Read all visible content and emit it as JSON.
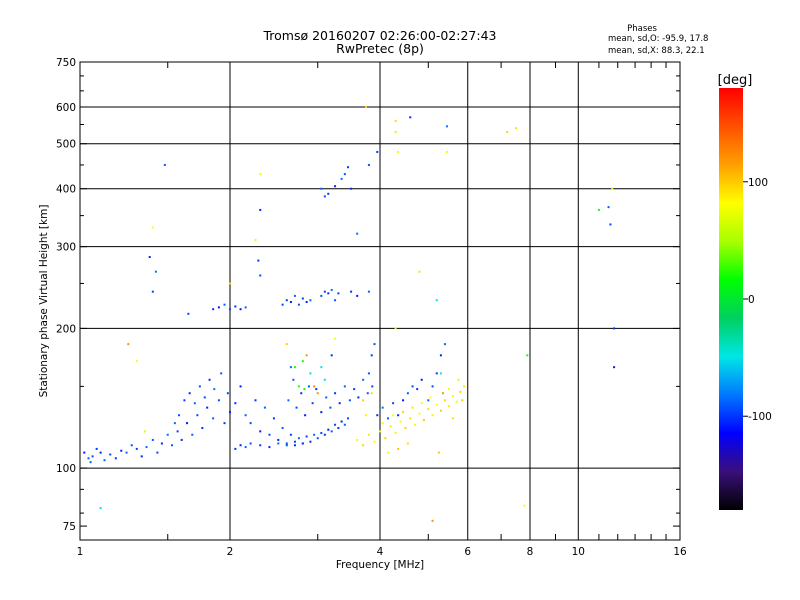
{
  "chart_data": {
    "type": "scatter",
    "title": "Tromsø 20160207 02:26:00-02:27:43",
    "subtitle": "RwPretec (8p)",
    "xlabel": "Frequency [MHz]",
    "ylabel": "Stationary phase Virtual Height [km]",
    "x_scale": "log",
    "y_scale": "log",
    "xlim": [
      1,
      16
    ],
    "ylim": [
      70,
      750
    ],
    "grid": true,
    "x_ticks": [
      1,
      2,
      4,
      6,
      8,
      10,
      16
    ],
    "x_tick_labels": [
      "1",
      "2",
      "4",
      "6",
      "8",
      "10",
      "16"
    ],
    "x_minor_ticks": [
      1.5,
      3,
      5,
      7,
      9,
      11,
      12,
      13,
      14,
      15
    ],
    "y_ticks": [
      75,
      100,
      200,
      300,
      400,
      500,
      600,
      750
    ],
    "y_tick_labels": [
      "75",
      "100",
      "200",
      "300",
      "400",
      "500",
      "600",
      "750"
    ],
    "phase_stats": {
      "heading": "Phases",
      "o_line": "mean, sd,O: -95.9, 17.8",
      "x_line": "mean, sd,X:  88.3, 22.1"
    },
    "colorbar": {
      "label": "[deg]",
      "range": [
        -180,
        180
      ],
      "ticks": [
        100,
        0,
        -100
      ],
      "tick_labels": [
        "100",
        "0",
        "-100"
      ],
      "colors": [
        "#000000",
        "#3a0f7a",
        "#0000ff",
        "#0078ff",
        "#00e6e6",
        "#00d060",
        "#00ff00",
        "#a8ff00",
        "#ffff00",
        "#ffa000",
        "#ff5000",
        "#ff0000"
      ]
    },
    "series": [
      {
        "mode": "O",
        "phase_deg": -95.9,
        "points": [
          [
            1.02,
            108
          ],
          [
            1.04,
            105
          ],
          [
            1.06,
            106
          ],
          [
            1.08,
            110
          ],
          [
            1.1,
            108
          ],
          [
            1.12,
            104
          ],
          [
            1.15,
            107
          ],
          [
            1.18,
            105
          ],
          [
            1.21,
            109
          ],
          [
            1.24,
            108
          ],
          [
            1.27,
            112
          ],
          [
            1.3,
            110
          ],
          [
            1.33,
            106
          ],
          [
            1.36,
            111
          ],
          [
            1.4,
            115
          ],
          [
            1.43,
            108
          ],
          [
            1.46,
            113
          ],
          [
            1.5,
            118
          ],
          [
            1.53,
            112
          ],
          [
            1.57,
            120
          ],
          [
            1.6,
            115
          ],
          [
            1.64,
            125
          ],
          [
            1.68,
            118
          ],
          [
            1.72,
            130
          ],
          [
            1.76,
            122
          ],
          [
            1.8,
            135
          ],
          [
            1.85,
            128
          ],
          [
            1.9,
            140
          ],
          [
            1.95,
            125
          ],
          [
            2.0,
            132
          ],
          [
            1.55,
            125
          ],
          [
            1.58,
            130
          ],
          [
            1.62,
            140
          ],
          [
            1.66,
            145
          ],
          [
            1.7,
            138
          ],
          [
            1.74,
            150
          ],
          [
            1.78,
            142
          ],
          [
            1.82,
            155
          ],
          [
            1.86,
            148
          ],
          [
            1.92,
            160
          ],
          [
            1.98,
            145
          ],
          [
            2.05,
            138
          ],
          [
            2.1,
            150
          ],
          [
            2.15,
            130
          ],
          [
            2.2,
            125
          ],
          [
            2.25,
            140
          ],
          [
            2.3,
            120
          ],
          [
            2.35,
            135
          ],
          [
            2.4,
            118
          ],
          [
            2.45,
            128
          ],
          [
            2.5,
            115
          ],
          [
            2.55,
            122
          ],
          [
            2.6,
            113
          ],
          [
            2.65,
            118
          ],
          [
            2.7,
            112
          ],
          [
            2.75,
            116
          ],
          [
            2.8,
            113
          ],
          [
            2.85,
            117
          ],
          [
            2.9,
            114
          ],
          [
            2.95,
            118
          ],
          [
            3.0,
            116
          ],
          [
            3.05,
            119
          ],
          [
            3.1,
            118
          ],
          [
            3.15,
            121
          ],
          [
            3.2,
            120
          ],
          [
            3.25,
            124
          ],
          [
            3.3,
            122
          ],
          [
            3.35,
            126
          ],
          [
            3.4,
            124
          ],
          [
            3.45,
            128
          ],
          [
            2.05,
            110
          ],
          [
            2.1,
            112
          ],
          [
            2.15,
            111
          ],
          [
            2.2,
            113
          ],
          [
            2.3,
            112
          ],
          [
            2.4,
            111
          ],
          [
            2.5,
            113
          ],
          [
            2.6,
            112
          ],
          [
            2.7,
            114
          ],
          [
            2.8,
            113
          ],
          [
            2.62,
            140
          ],
          [
            2.68,
            155
          ],
          [
            2.72,
            135
          ],
          [
            2.78,
            145
          ],
          [
            2.83,
            130
          ],
          [
            2.88,
            150
          ],
          [
            2.93,
            138
          ],
          [
            2.98,
            148
          ],
          [
            3.05,
            132
          ],
          [
            3.12,
            142
          ],
          [
            3.18,
            135
          ],
          [
            3.25,
            145
          ],
          [
            3.32,
            138
          ],
          [
            3.4,
            150
          ],
          [
            3.48,
            140
          ],
          [
            3.55,
            148
          ],
          [
            3.62,
            142
          ],
          [
            3.7,
            155
          ],
          [
            3.78,
            145
          ],
          [
            3.86,
            150
          ],
          [
            3.95,
            130
          ],
          [
            4.05,
            135
          ],
          [
            4.15,
            128
          ],
          [
            4.25,
            138
          ],
          [
            4.35,
            130
          ],
          [
            4.45,
            140
          ],
          [
            4.55,
            145
          ],
          [
            4.65,
            150
          ],
          [
            4.75,
            148
          ],
          [
            4.85,
            155
          ],
          [
            5.0,
            140
          ],
          [
            5.1,
            150
          ],
          [
            5.2,
            160
          ],
          [
            5.3,
            175
          ],
          [
            5.4,
            185
          ],
          [
            3.9,
            185
          ],
          [
            3.85,
            175
          ],
          [
            3.2,
            175
          ],
          [
            2.65,
            165
          ],
          [
            3.8,
            160
          ],
          [
            1.4,
            240
          ],
          [
            1.38,
            285
          ],
          [
            1.42,
            265
          ],
          [
            1.48,
            450
          ],
          [
            1.65,
            215
          ],
          [
            1.85,
            220
          ],
          [
            1.9,
            222
          ],
          [
            1.95,
            225
          ],
          [
            2.0,
            220
          ],
          [
            2.05,
            223
          ],
          [
            2.1,
            220
          ],
          [
            2.15,
            222
          ],
          [
            2.55,
            225
          ],
          [
            2.6,
            230
          ],
          [
            2.65,
            228
          ],
          [
            2.7,
            235
          ],
          [
            2.75,
            225
          ],
          [
            2.8,
            232
          ],
          [
            2.85,
            228
          ],
          [
            2.9,
            230
          ],
          [
            3.05,
            235
          ],
          [
            3.1,
            240
          ],
          [
            3.15,
            238
          ],
          [
            3.2,
            242
          ],
          [
            3.25,
            230
          ],
          [
            3.3,
            238
          ],
          [
            3.5,
            240
          ],
          [
            3.6,
            235
          ],
          [
            3.8,
            240
          ],
          [
            2.3,
            260
          ],
          [
            2.28,
            280
          ],
          [
            2.3,
            360
          ],
          [
            3.05,
            400
          ],
          [
            3.1,
            385
          ],
          [
            3.15,
            390
          ],
          [
            3.25,
            405
          ],
          [
            3.35,
            420
          ],
          [
            3.4,
            430
          ],
          [
            3.45,
            445
          ],
          [
            3.5,
            400
          ],
          [
            3.6,
            320
          ],
          [
            3.8,
            450
          ],
          [
            3.95,
            480
          ],
          [
            4.6,
            570
          ],
          [
            5.45,
            545
          ],
          [
            11.5,
            365
          ],
          [
            11.6,
            335
          ],
          [
            11.8,
            200
          ],
          [
            11.8,
            165
          ],
          [
            1.05,
            103
          ]
        ]
      },
      {
        "mode": "X",
        "phase_deg": 88.3,
        "points": [
          [
            3.6,
            115
          ],
          [
            3.7,
            112
          ],
          [
            3.8,
            118
          ],
          [
            3.9,
            114
          ],
          [
            4.0,
            120
          ],
          [
            4.1,
            116
          ],
          [
            4.2,
            123
          ],
          [
            4.3,
            119
          ],
          [
            4.4,
            126
          ],
          [
            4.5,
            122
          ],
          [
            4.6,
            128
          ],
          [
            4.7,
            124
          ],
          [
            4.8,
            131
          ],
          [
            4.9,
            127
          ],
          [
            5.0,
            134
          ],
          [
            5.1,
            130
          ],
          [
            5.2,
            137
          ],
          [
            5.3,
            133
          ],
          [
            5.4,
            140
          ],
          [
            5.5,
            136
          ],
          [
            5.6,
            143
          ],
          [
            5.7,
            139
          ],
          [
            5.8,
            146
          ],
          [
            5.9,
            150
          ],
          [
            4.05,
            125
          ],
          [
            4.25,
            130
          ],
          [
            4.45,
            132
          ],
          [
            4.65,
            135
          ],
          [
            4.85,
            138
          ],
          [
            5.05,
            142
          ],
          [
            3.7,
            140
          ],
          [
            3.85,
            145
          ],
          [
            3.75,
            130
          ],
          [
            4.15,
            108
          ],
          [
            4.35,
            110
          ],
          [
            4.55,
            113
          ],
          [
            5.75,
            155
          ],
          [
            5.5,
            148
          ],
          [
            5.85,
            140
          ],
          [
            5.6,
            128
          ],
          [
            1.35,
            120
          ],
          [
            1.3,
            170
          ],
          [
            2.3,
            430
          ],
          [
            4.3,
            560
          ],
          [
            4.3,
            530
          ],
          [
            4.35,
            480
          ],
          [
            5.45,
            480
          ],
          [
            7.2,
            530
          ],
          [
            7.5,
            540
          ],
          [
            11.7,
            400
          ],
          [
            3.25,
            190
          ],
          [
            2.6,
            185
          ],
          [
            4.8,
            265
          ],
          [
            4.3,
            200
          ],
          [
            7.8,
            83
          ],
          [
            3.75,
            600
          ],
          [
            2.0,
            250
          ],
          [
            2.25,
            310
          ],
          [
            1.4,
            330
          ],
          [
            5.25,
            108
          ]
        ]
      },
      {
        "mode": "other",
        "phase_deg": 20,
        "points": [
          [
            2.8,
            170
          ],
          [
            2.9,
            160
          ],
          [
            3.0,
            145
          ],
          [
            2.75,
            150
          ],
          [
            3.05,
            165
          ],
          [
            2.85,
            175
          ],
          [
            2.7,
            165
          ],
          [
            3.1,
            155
          ],
          [
            2.95,
            150
          ],
          [
            2.82,
            148
          ],
          [
            5.3,
            160
          ],
          [
            5.35,
            145
          ],
          [
            11.0,
            360
          ],
          [
            1.1,
            82
          ],
          [
            5.1,
            77
          ],
          [
            7.9,
            175
          ],
          [
            5.2,
            230
          ],
          [
            1.25,
            185
          ]
        ]
      }
    ]
  }
}
